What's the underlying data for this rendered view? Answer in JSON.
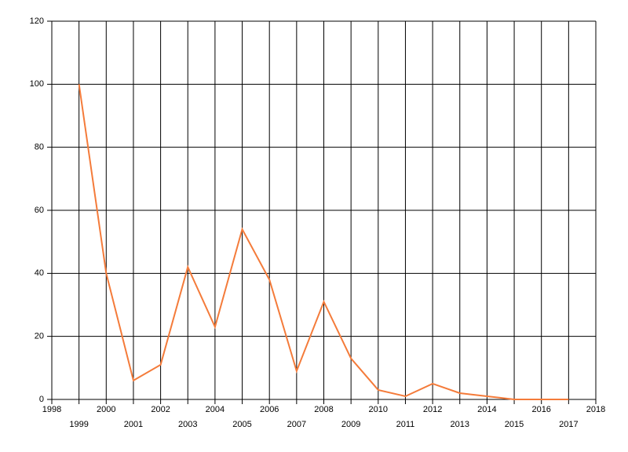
{
  "chart_data": {
    "type": "line",
    "x": [
      1999,
      2000,
      2001,
      2002,
      2003,
      2004,
      2005,
      2006,
      2007,
      2008,
      2009,
      2010,
      2011,
      2012,
      2013,
      2014,
      2015,
      2016,
      2017
    ],
    "series": [
      {
        "color": "#f47b3a",
        "values": [
          100,
          40,
          6,
          11,
          42,
          23,
          54,
          38,
          9,
          31,
          13,
          3,
          1,
          5,
          2,
          1,
          0,
          0,
          0
        ]
      }
    ],
    "xlim": [
      1998,
      2018
    ],
    "xticks": [
      1998,
      1999,
      2000,
      2001,
      2002,
      2003,
      2004,
      2005,
      2006,
      2007,
      2008,
      2009,
      2010,
      2011,
      2012,
      2013,
      2014,
      2015,
      2016,
      2017,
      2018
    ],
    "ylim": [
      0,
      120
    ],
    "yticks": [
      0,
      20,
      40,
      60,
      80,
      100,
      120
    ],
    "grid": true
  }
}
